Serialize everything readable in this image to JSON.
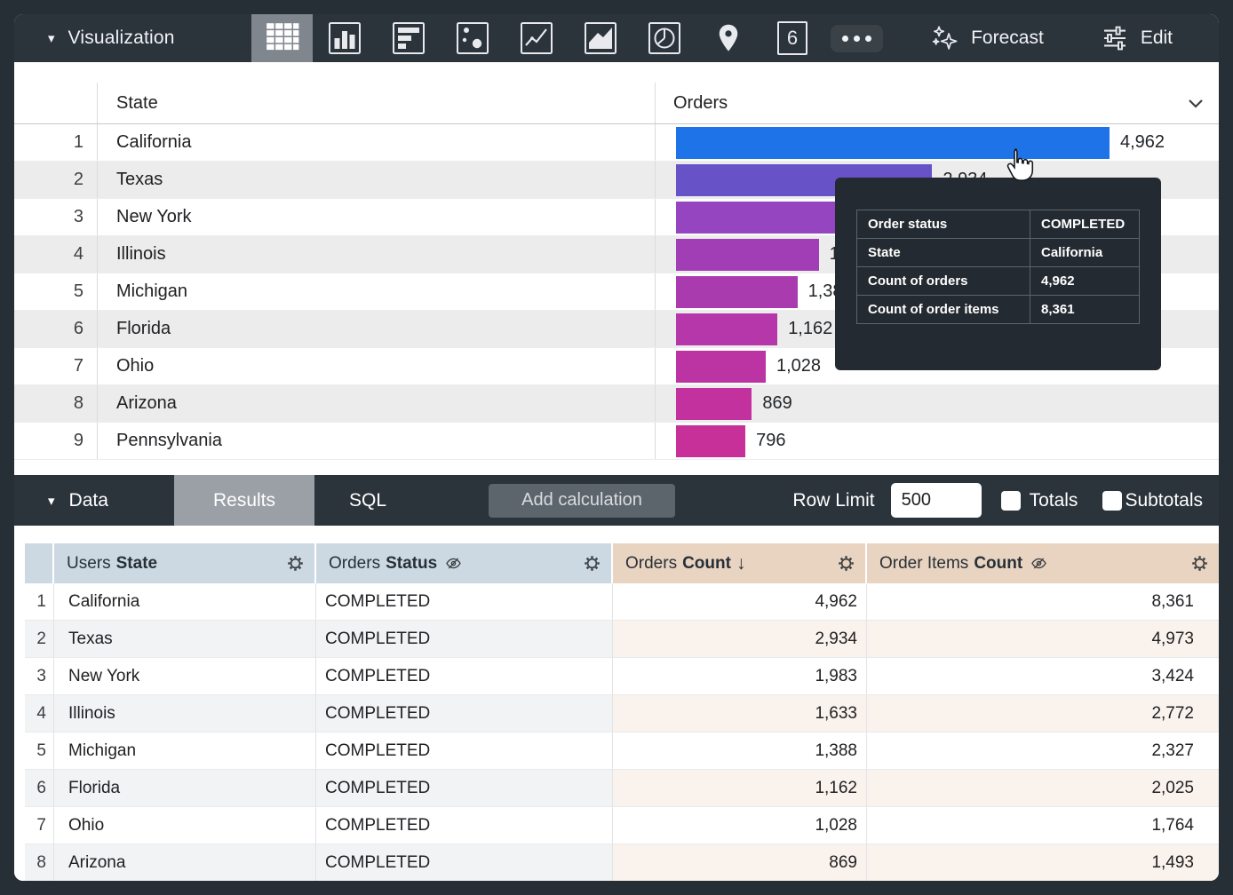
{
  "colors": {
    "toolbar_bg": "#2b333b",
    "selected_icon_bg": "#7f868d",
    "results_tab_bg": "#9aa0a6",
    "tooltip_bg": "#242a31",
    "dimension_header_bg": "#ccd9e3",
    "measure_header_bg": "#e9d4c1",
    "dimension_stripe": "#f1f3f5",
    "measure_stripe": "#faf2ec",
    "viz_stripe": "#ececec",
    "bar_blue": "#1e73e8"
  },
  "icons": {
    "dropdown_triangle": "▾",
    "sort_desc": "↓",
    "single_value_glyph": "6"
  },
  "viz_toolbar": {
    "title": "Visualization",
    "forecast_label": "Forecast",
    "edit_label": "Edit"
  },
  "viz_table": {
    "state_header": "State",
    "orders_header": "Orders",
    "rows": [
      {
        "num": "1",
        "state": "California",
        "label": "4,962",
        "value": 4962,
        "bar_color": "#1e73e8",
        "bar_width_pct": 100.0
      },
      {
        "num": "2",
        "state": "Texas",
        "label": "2,934",
        "value": 2934,
        "bar_color": "#6753c7",
        "bar_width_pct": 59.1
      },
      {
        "num": "3",
        "state": "New York",
        "label": "1,983",
        "value": 1983,
        "bar_color": "#9645c1",
        "bar_width_pct": 40.0
      },
      {
        "num": "4",
        "state": "Illinois",
        "label": "1,633",
        "value": 1633,
        "bar_color": "#a23eb5",
        "bar_width_pct": 32.9
      },
      {
        "num": "5",
        "state": "Michigan",
        "label": "1,388",
        "value": 1388,
        "bar_color": "#aa3bae",
        "bar_width_pct": 28.0
      },
      {
        "num": "6",
        "state": "Florida",
        "label": "1,162",
        "value": 1162,
        "bar_color": "#b537a9",
        "bar_width_pct": 23.4
      },
      {
        "num": "7",
        "state": "Ohio",
        "label": "1,028",
        "value": 1028,
        "bar_color": "#bc34a3",
        "bar_width_pct": 20.7
      },
      {
        "num": "8",
        "state": "Arizona",
        "label": "869",
        "value": 869,
        "bar_color": "#c2319e",
        "bar_width_pct": 17.5
      },
      {
        "num": "9",
        "state": "Pennsylvania",
        "label": "796",
        "value": 796,
        "bar_color": "#c72f99",
        "bar_width_pct": 16.0
      }
    ]
  },
  "tooltip": {
    "rows": [
      {
        "label": "Order status",
        "value": "COMPLETED"
      },
      {
        "label": "State",
        "value": "California"
      },
      {
        "label": "Count of orders",
        "value": "4,962"
      },
      {
        "label": "Count of order items",
        "value": "8,361"
      }
    ]
  },
  "data_toolbar": {
    "title": "Data",
    "results_tab": "Results",
    "sql_tab": "SQL",
    "add_calculation_label": "Add calculation",
    "row_limit_label": "Row Limit",
    "row_limit_value": "500",
    "totals_label": "Totals",
    "subtotals_label": "Subtotals"
  },
  "data_table": {
    "headers": {
      "users_prefix": "Users",
      "users_field": "State",
      "orders_prefix": "Orders",
      "orders_field": "Status",
      "count_prefix": "Orders",
      "count_field": "Count",
      "items_prefix": "Order Items",
      "items_field": "Count"
    },
    "rows": [
      {
        "num": "1",
        "state": "California",
        "status": "COMPLETED",
        "orders_count": "4,962",
        "order_items_count": "8,361"
      },
      {
        "num": "2",
        "state": "Texas",
        "status": "COMPLETED",
        "orders_count": "2,934",
        "order_items_count": "4,973"
      },
      {
        "num": "3",
        "state": "New York",
        "status": "COMPLETED",
        "orders_count": "1,983",
        "order_items_count": "3,424"
      },
      {
        "num": "4",
        "state": "Illinois",
        "status": "COMPLETED",
        "orders_count": "1,633",
        "order_items_count": "2,772"
      },
      {
        "num": "5",
        "state": "Michigan",
        "status": "COMPLETED",
        "orders_count": "1,388",
        "order_items_count": "2,327"
      },
      {
        "num": "6",
        "state": "Florida",
        "status": "COMPLETED",
        "orders_count": "1,162",
        "order_items_count": "2,025"
      },
      {
        "num": "7",
        "state": "Ohio",
        "status": "COMPLETED",
        "orders_count": "1,028",
        "order_items_count": "1,764"
      },
      {
        "num": "8",
        "state": "Arizona",
        "status": "COMPLETED",
        "orders_count": "869",
        "order_items_count": "1,493"
      }
    ]
  },
  "chart_data": {
    "type": "bar",
    "orientation": "horizontal",
    "series_label": "Orders",
    "categories": [
      "California",
      "Texas",
      "New York",
      "Illinois",
      "Michigan",
      "Florida",
      "Ohio",
      "Arizona",
      "Pennsylvania"
    ],
    "values": [
      4962,
      2934,
      1983,
      1633,
      1388,
      1162,
      1028,
      869,
      796
    ],
    "bar_colors": [
      "#1e73e8",
      "#6753c7",
      "#9645c1",
      "#a23eb5",
      "#aa3bae",
      "#b537a9",
      "#bc34a3",
      "#c2319e",
      "#c72f99"
    ],
    "xlim": [
      0,
      4962
    ],
    "legend": "none",
    "grid": "off"
  }
}
